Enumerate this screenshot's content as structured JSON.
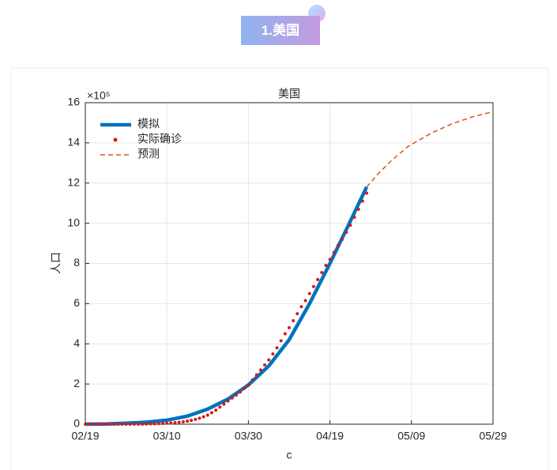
{
  "header": {
    "badge": "1.美国"
  },
  "chart_data": {
    "type": "line",
    "title": "美国",
    "xlabel": "c",
    "ylabel": "人口",
    "y_exponent": "×10⁵",
    "xlim": [
      0,
      100
    ],
    "xticks": [
      {
        "value": 0,
        "label": "02/19"
      },
      {
        "value": 20,
        "label": "03/10"
      },
      {
        "value": 40,
        "label": "03/30"
      },
      {
        "value": 60,
        "label": "04/19"
      },
      {
        "value": 80,
        "label": "05/09"
      },
      {
        "value": 100,
        "label": "05/29"
      }
    ],
    "ylim": [
      0,
      16
    ],
    "yticks": [
      0,
      2,
      4,
      6,
      8,
      10,
      12,
      14,
      16
    ],
    "grid": true,
    "legend": "upper left",
    "series": [
      {
        "name": "模拟",
        "style": "line",
        "color": "#0072bd",
        "x": [
          0,
          5,
          10,
          15,
          20,
          25,
          30,
          35,
          40,
          45,
          50,
          55,
          60,
          65,
          69
        ],
        "values": [
          0,
          0.01,
          0.05,
          0.1,
          0.2,
          0.4,
          0.75,
          1.25,
          1.95,
          2.9,
          4.2,
          6.0,
          8.0,
          10.1,
          11.8
        ]
      },
      {
        "name": "实际确诊",
        "style": "dots",
        "color": "#d7191c",
        "x": [
          0,
          1,
          2,
          3,
          4,
          5,
          6,
          7,
          8,
          9,
          10,
          11,
          12,
          13,
          14,
          15,
          16,
          17,
          18,
          19,
          20,
          21,
          22,
          23,
          24,
          25,
          26,
          27,
          28,
          29,
          30,
          31,
          32,
          33,
          34,
          35,
          36,
          37,
          38,
          39,
          40,
          41,
          42,
          43,
          44,
          45,
          46,
          47,
          48,
          49,
          50,
          51,
          52,
          53,
          54,
          55,
          56,
          57,
          58,
          59,
          60,
          61,
          62,
          63,
          64,
          65,
          66,
          67,
          68,
          69
        ],
        "values": [
          0,
          0,
          0,
          0,
          0,
          0,
          0,
          0,
          0,
          0,
          0,
          0,
          0,
          0,
          0,
          0.01,
          0.02,
          0.02,
          0.03,
          0.04,
          0.05,
          0.06,
          0.08,
          0.1,
          0.12,
          0.15,
          0.19,
          0.24,
          0.3,
          0.37,
          0.45,
          0.57,
          0.7,
          0.85,
          1.0,
          1.15,
          1.3,
          1.45,
          1.6,
          1.78,
          1.95,
          2.2,
          2.45,
          2.7,
          2.95,
          3.2,
          3.5,
          3.8,
          4.15,
          4.5,
          4.8,
          5.15,
          5.5,
          5.85,
          6.15,
          6.5,
          6.85,
          7.2,
          7.55,
          7.9,
          8.2,
          8.55,
          8.9,
          9.2,
          9.55,
          9.9,
          10.3,
          10.7,
          11.1,
          11.5
        ]
      },
      {
        "name": "预测",
        "style": "dashed",
        "color": "#d95319",
        "x": [
          69,
          72,
          75,
          79,
          85,
          90,
          95,
          100
        ],
        "values": [
          11.8,
          12.5,
          13.1,
          13.8,
          14.5,
          14.95,
          15.3,
          15.55
        ]
      }
    ]
  }
}
